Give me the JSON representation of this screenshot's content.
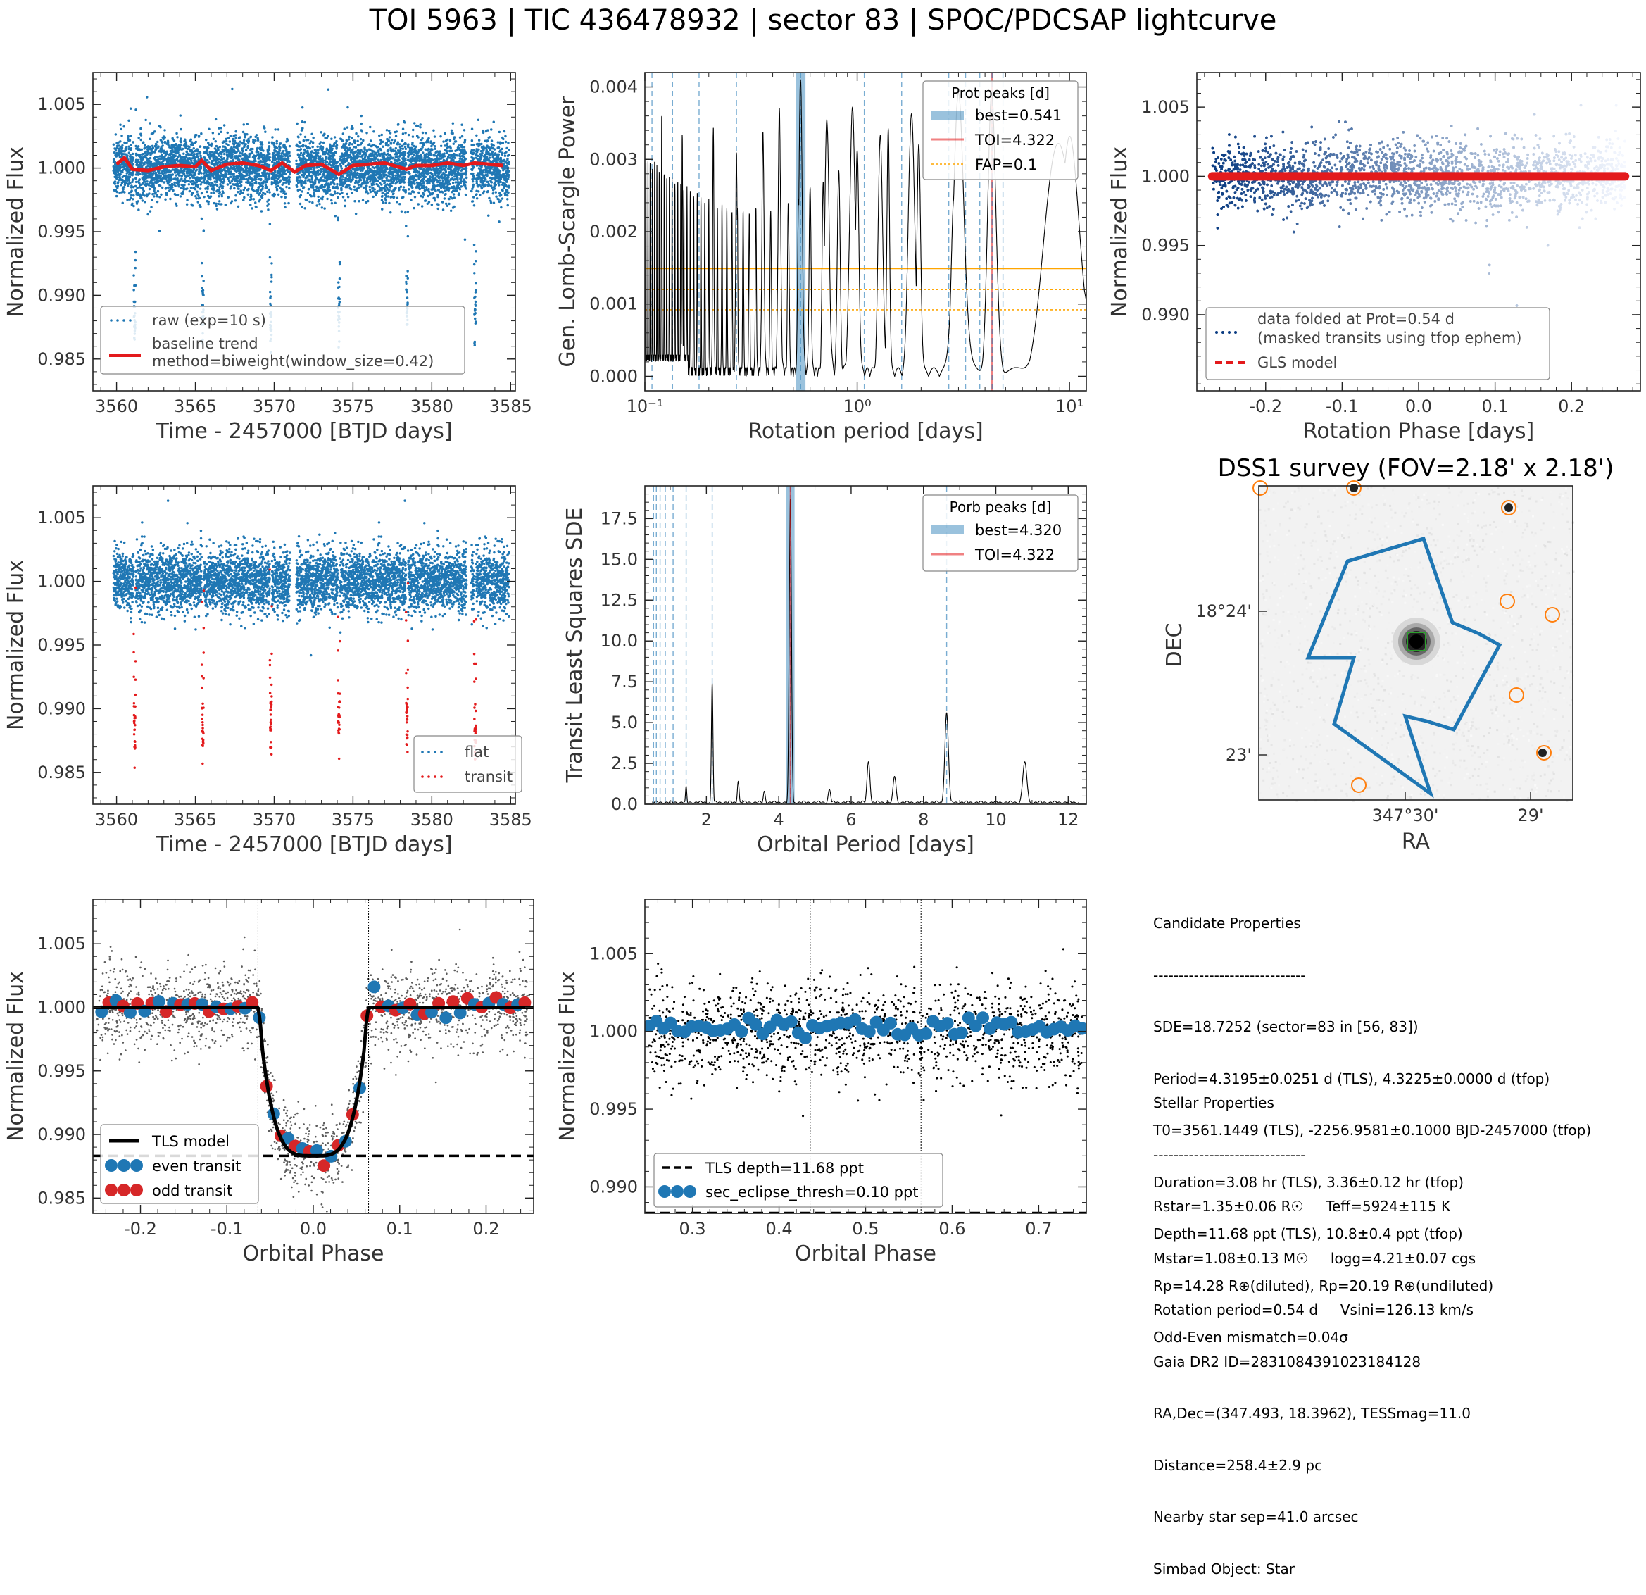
{
  "suptitle": "TOI 5963 | TIC 436478932 | sector 83 | SPOC/PDCSAP lightcurve",
  "colors": {
    "blue": "#1f77b4",
    "red": "#e31a1c",
    "black": "#000000",
    "orange": "#ff7f0e",
    "fap": "#ffa500",
    "green": "#2ca02c"
  },
  "chart_data": [
    {
      "id": "raw_lightcurve",
      "type": "scatter",
      "xlabel": "Time - 2457000 [BTJD days]",
      "ylabel": "Normalized Flux",
      "xlim": [
        3558.5,
        3585.3
      ],
      "ylim": [
        0.9825,
        1.0075
      ],
      "xticks": [
        3560,
        3565,
        3570,
        3575,
        3580,
        3585
      ],
      "yticks": [
        0.985,
        0.99,
        0.995,
        1.0,
        1.005
      ],
      "series": [
        {
          "name": "raw (exp=10 s)",
          "kind": "points",
          "color": "#1f77b4",
          "cadence_days": 0.0014,
          "baseline_flux": 1.0,
          "scatter": 0.0022,
          "gaps": [
            [
              3571.0,
              3571.4
            ],
            [
              3582.2,
              3582.5
            ]
          ],
          "transits": [
            3561.145,
            3565.465,
            3569.784,
            3574.104,
            3578.423,
            3582.743
          ],
          "transit_depth": 0.0117,
          "transit_duration_days": 0.128
        },
        {
          "name": "baseline trend",
          "kind": "line",
          "color": "#e31a1c",
          "x": [
            3560.0,
            3560.5,
            3561.0,
            3562.0,
            3563.0,
            3564.0,
            3565.0,
            3565.4,
            3566.0,
            3567.0,
            3568.0,
            3569.0,
            3569.8,
            3570.5,
            3571.3,
            3572.0,
            3573.0,
            3574.1,
            3575.0,
            3576.0,
            3577.0,
            3578.4,
            3579.0,
            3580.0,
            3581.0,
            3582.0,
            3582.7,
            3584.5
          ],
          "y": [
            1.0003,
            1.0008,
            0.9999,
            0.9998,
            1.0001,
            1.0002,
            1.0001,
            1.0006,
            0.9998,
            1.0003,
            1.0004,
            1.0002,
            0.9998,
            1.0004,
            0.9997,
            1.0002,
            1.0003,
            0.9995,
            1.0002,
            1.0003,
            1.0004,
            0.9999,
            1.0002,
            1.0002,
            1.0004,
            1.0002,
            1.0004,
            1.0002
          ]
        }
      ],
      "legend": [
        "raw (exp=10 s)",
        "baseline trend",
        "method=biweight(window_size=0.42)"
      ],
      "legend_loc": "lower left"
    },
    {
      "id": "gls_periodogram",
      "type": "line",
      "xlabel": "Rotation period [days]",
      "ylabel": "Gen. Lomb-Scargle Power",
      "xscale": "log",
      "xlim": [
        0.1,
        12
      ],
      "ylim": [
        -0.0002,
        0.0042
      ],
      "xticks": [
        0.1,
        1,
        10
      ],
      "xtick_labels": [
        "10⁻¹",
        "10⁰",
        "10¹"
      ],
      "yticks": [
        0.0,
        0.001,
        0.002,
        0.003,
        0.004
      ],
      "best_period": 0.541,
      "toi_period": 4.322,
      "fap_levels": [
        0.00149,
        0.0012,
        0.00092
      ],
      "harmonic_lines": [
        0.108,
        0.135,
        0.18,
        0.27,
        0.541,
        1.08,
        1.62,
        2.7,
        3.24,
        3.78,
        4.32,
        4.86
      ],
      "peaks": [
        {
          "period": 4.3,
          "power": 0.0038
        },
        {
          "period": 2.85,
          "power": 0.0024
        },
        {
          "period": 1.95,
          "power": 0.0032
        },
        {
          "period": 1.4,
          "power": 0.0034
        },
        {
          "period": 0.95,
          "power": 0.0036
        },
        {
          "period": 0.72,
          "power": 0.0035
        },
        {
          "period": 0.541,
          "power": 0.0041
        },
        {
          "period": 0.43,
          "power": 0.0036
        },
        {
          "period": 0.36,
          "power": 0.0033
        },
        {
          "period": 0.27,
          "power": 0.003
        },
        {
          "period": 0.21,
          "power": 0.0034
        },
        {
          "period": 0.15,
          "power": 0.0033
        },
        {
          "period": 0.12,
          "power": 0.0035
        },
        {
          "period": 10.0,
          "power": 0.0033
        }
      ],
      "legend_title": "Prot peaks [d]",
      "legend": [
        "best=0.541",
        "TOI=4.322",
        "FAP=0.1"
      ],
      "legend_loc": "upper right"
    },
    {
      "id": "phase_folded_rotation",
      "type": "scatter",
      "xlabel": "Rotation Phase [days]",
      "ylabel": "Normalized Flux",
      "xlim": [
        -0.29,
        0.29
      ],
      "ylim": [
        0.9845,
        1.0075
      ],
      "xticks": [
        -0.2,
        -0.1,
        0.0,
        0.1,
        0.2
      ],
      "yticks": [
        0.99,
        0.995,
        1.0,
        1.005
      ],
      "fold_period": 0.54,
      "model_flux": 1.0,
      "legend": [
        "data folded at Prot=0.54 d",
        "(masked transits using tfop ephem)",
        "GLS model"
      ],
      "legend_loc": "lower left"
    },
    {
      "id": "flat_lightcurve",
      "type": "scatter",
      "xlabel": "Time - 2457000 [BTJD days]",
      "ylabel": "Normalized Flux",
      "xlim": [
        3558.5,
        3585.3
      ],
      "ylim": [
        0.9825,
        1.0075
      ],
      "xticks": [
        3560,
        3565,
        3570,
        3575,
        3580,
        3585
      ],
      "yticks": [
        0.985,
        0.99,
        0.995,
        1.0,
        1.005
      ],
      "legend": [
        "flat",
        "transit"
      ],
      "legend_loc": "lower right"
    },
    {
      "id": "tls_periodogram",
      "type": "line",
      "xlabel": "Orbital Period [days]",
      "ylabel": "Transit Least Squares SDE",
      "xlim": [
        0.3,
        12.5
      ],
      "ylim": [
        0,
        19.5
      ],
      "xticks": [
        2,
        4,
        6,
        8,
        10,
        12
      ],
      "yticks": [
        0.0,
        2.5,
        5.0,
        7.5,
        10.0,
        12.5,
        15.0,
        17.5
      ],
      "best_period": 4.32,
      "toi_period": 4.322,
      "harmonic_lines": [
        0.54,
        0.617,
        0.72,
        0.864,
        1.08,
        1.44,
        2.16,
        4.32,
        8.64
      ],
      "peaks": [
        {
          "period": 4.32,
          "sde": 18.73
        },
        {
          "period": 8.64,
          "sde": 5.6
        },
        {
          "period": 2.16,
          "sde": 7.4
        },
        {
          "period": 6.48,
          "sde": 2.6
        },
        {
          "period": 10.8,
          "sde": 2.6
        },
        {
          "period": 7.2,
          "sde": 1.7
        },
        {
          "period": 1.44,
          "sde": 1.1
        },
        {
          "period": 2.88,
          "sde": 1.4
        },
        {
          "period": 3.6,
          "sde": 0.8
        },
        {
          "period": 5.4,
          "sde": 0.9
        }
      ],
      "legend_title": "Porb peaks [d]",
      "legend": [
        "best=4.320",
        "TOI=4.322"
      ],
      "legend_loc": "upper right"
    },
    {
      "id": "dss_image",
      "type": "heatmap",
      "title": "DSS1 survey (FOV=2.18' x 2.18')",
      "xlabel": "RA",
      "ylabel": "DEC",
      "xtick_labels": [
        "347°30'",
        "29'"
      ],
      "ytick_labels": [
        "18°24'",
        "23'"
      ]
    },
    {
      "id": "transit_fold",
      "type": "scatter",
      "xlabel": "Orbital Phase",
      "ylabel": "Normalized Flux",
      "xlim": [
        -0.255,
        0.255
      ],
      "ylim": [
        0.9838,
        1.0085
      ],
      "xticks": [
        -0.2,
        -0.1,
        0.0,
        0.1,
        0.2
      ],
      "yticks": [
        0.985,
        0.99,
        0.995,
        1.0,
        1.005
      ],
      "transit_half_width": 0.064,
      "depth": 0.01168,
      "tls_depth_level": 0.98832,
      "legend": [
        "TLS model",
        "even transit",
        "odd transit"
      ],
      "legend_loc": "lower left"
    },
    {
      "id": "secondary_eclipse",
      "type": "scatter",
      "xlabel": "Orbital Phase",
      "ylabel": "Normalized Flux",
      "xlim": [
        0.245,
        0.755
      ],
      "ylim": [
        0.9883,
        1.0085
      ],
      "xticks": [
        0.3,
        0.4,
        0.5,
        0.6,
        0.7
      ],
      "yticks": [
        0.99,
        0.995,
        1.0,
        1.005
      ],
      "window_lines": [
        0.436,
        0.564
      ],
      "tls_depth_level": 0.98832,
      "legend": [
        "TLS depth=11.68 ppt",
        "sec_eclipse_thresh=0.10 ppt"
      ],
      "legend_loc": "lower left"
    }
  ],
  "info": {
    "candidate_lines": [
      "Candidate Properties",
      "------------------------------",
      "SDE=18.7252 (sector=83 in [56, 83])",
      "Period=4.3195±0.0251 d (TLS), 4.3225±0.0000 d (tfop)",
      "T0=3561.1449 (TLS), -2256.9581±0.1000 BJD-2457000 (tfop)",
      "Duration=3.08 hr (TLS), 3.36±0.12 hr (tfop)",
      "Depth=11.68 ppt (TLS), 10.8±0.4 ppt (tfop)",
      "Rp=14.28 R⊕(diluted), Rp=20.19 R⊕(undiluted)",
      "Odd-Even mismatch=0.04σ"
    ],
    "stellar_lines": [
      "Stellar Properties",
      "------------------------------",
      "Rstar=1.35±0.06 R☉     Teff=5924±115 K",
      "Mstar=1.08±0.13 M☉     logg=4.21±0.07 cgs",
      "Rotation period=0.54 d     Vsini=126.13 km/s",
      "Gaia DR2 ID=2831084391023184128",
      "RA,Dec=(347.493, 18.3962), TESSmag=11.0",
      "Distance=258.4±2.9 pc",
      "Nearby star sep=41.0 arcsec",
      "Simbad Object: Star"
    ]
  }
}
